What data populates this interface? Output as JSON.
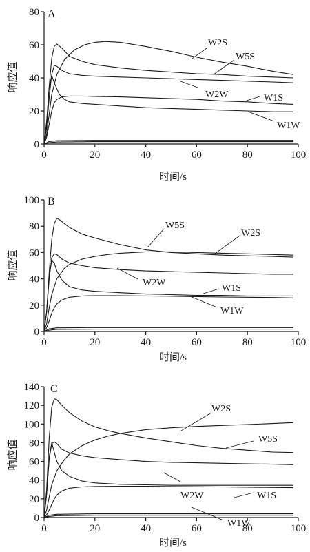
{
  "chart_data": [
    {
      "type": "line",
      "panel_label": "A",
      "xlabel": "时间/s",
      "ylabel": "响应值",
      "xlim": [
        0,
        100
      ],
      "ylim": [
        0,
        80
      ],
      "xticks": [
        0,
        20,
        40,
        60,
        80,
        100
      ],
      "yticks": [
        0,
        20,
        40,
        60,
        80
      ],
      "series": [
        {
          "name": "W2S",
          "x": [
            0,
            1,
            2,
            3,
            5,
            8,
            12,
            16,
            20,
            24,
            30,
            40,
            50,
            60,
            70,
            80,
            90,
            98
          ],
          "y": [
            0,
            6,
            18,
            30,
            42,
            51,
            57,
            60,
            61.5,
            62,
            61.5,
            59,
            56,
            52.5,
            49.5,
            47,
            44,
            42
          ]
        },
        {
          "name": "W5S",
          "x": [
            0,
            1,
            2,
            3,
            4,
            5,
            7,
            10,
            15,
            20,
            30,
            40,
            50,
            60,
            70,
            80,
            90,
            98
          ],
          "y": [
            0,
            12,
            35,
            52,
            59,
            60.5,
            58,
            53,
            50,
            48,
            46,
            44.5,
            43.5,
            42.5,
            42,
            41,
            40.5,
            40
          ]
        },
        {
          "name": "W2W",
          "x": [
            0,
            1,
            2,
            3,
            4,
            5,
            7,
            10,
            15,
            20,
            30,
            40,
            50,
            60,
            70,
            80,
            90,
            98
          ],
          "y": [
            0,
            10,
            28,
            42,
            47.5,
            47,
            44.5,
            42.5,
            41.5,
            41,
            40.5,
            40,
            39.5,
            39,
            38.5,
            38,
            37.5,
            37
          ]
        },
        {
          "name": "W1S",
          "x": [
            0,
            1,
            2,
            3,
            4,
            5,
            7,
            10,
            15,
            20,
            30,
            40,
            50,
            60,
            70,
            80,
            90,
            98
          ],
          "y": [
            0,
            4,
            12,
            20,
            25,
            27,
            28.5,
            29,
            29,
            28.8,
            28.5,
            28,
            27.5,
            27,
            26,
            25.5,
            24.5,
            24
          ]
        },
        {
          "name": "W1W",
          "x": [
            0,
            1,
            2,
            3,
            4,
            6,
            8,
            10,
            15,
            20,
            30,
            40,
            50,
            60,
            70,
            80,
            90,
            98
          ],
          "y": [
            0,
            14,
            34,
            41.5,
            37,
            30,
            27,
            25.5,
            24.5,
            24,
            23,
            22,
            21.5,
            21,
            20.5,
            20,
            19.5,
            19.5
          ]
        }
      ],
      "baselines": [
        {
          "x": [
            0,
            2,
            5,
            20,
            50,
            98
          ],
          "y": [
            0,
            1.5,
            2,
            2.2,
            2.2,
            2.2
          ]
        },
        {
          "x": [
            0,
            2,
            5,
            20,
            50,
            98
          ],
          "y": [
            0,
            0.8,
            1.2,
            1.4,
            1.4,
            1.4
          ]
        }
      ],
      "annotations": [
        "W2S",
        "W5S",
        "W2W",
        "W1S",
        "W1W"
      ]
    },
    {
      "type": "line",
      "panel_label": "B",
      "xlabel": "时间/s",
      "ylabel": "响应值",
      "xlim": [
        0,
        100
      ],
      "ylim": [
        0,
        100
      ],
      "xticks": [
        0,
        20,
        40,
        60,
        80,
        100
      ],
      "yticks": [
        0,
        20,
        40,
        60,
        80,
        100
      ],
      "series": [
        {
          "name": "W5S",
          "x": [
            0,
            1,
            2,
            3,
            4,
            5,
            6,
            8,
            10,
            15,
            20,
            30,
            40,
            50,
            60,
            70,
            80,
            90,
            98
          ],
          "y": [
            0,
            15,
            45,
            70,
            82,
            86,
            85,
            82,
            79,
            74,
            71,
            66,
            62,
            60,
            59,
            58,
            57.5,
            57,
            56.5
          ]
        },
        {
          "name": "W2S",
          "x": [
            0,
            1,
            2,
            3,
            5,
            8,
            10,
            15,
            20,
            25,
            30,
            40,
            50,
            60,
            70,
            80,
            90,
            98
          ],
          "y": [
            0,
            6,
            18,
            28,
            40,
            48,
            51,
            55,
            57,
            58.5,
            59.5,
            60.5,
            60.5,
            60,
            59.5,
            59,
            58.5,
            58
          ]
        },
        {
          "name": "W2W",
          "x": [
            0,
            1,
            2,
            3,
            4,
            5,
            7,
            10,
            15,
            20,
            30,
            40,
            50,
            60,
            70,
            80,
            90,
            98
          ],
          "y": [
            0,
            15,
            40,
            56,
            59,
            58.5,
            55,
            52,
            50,
            48.5,
            47,
            46,
            45.5,
            45,
            44.5,
            44,
            43.5,
            43.5
          ]
        },
        {
          "name": "W1S",
          "x": [
            0,
            1,
            2,
            3,
            4,
            5,
            7,
            10,
            15,
            20,
            30,
            40,
            50,
            60,
            70,
            80,
            90,
            98
          ],
          "y": [
            0,
            3,
            8,
            14,
            18,
            21,
            24,
            26,
            27,
            27.2,
            27.2,
            27,
            26.8,
            26.5,
            26.2,
            26,
            25.8,
            25.5
          ]
        },
        {
          "name": "W1W",
          "x": [
            0,
            1,
            2,
            3,
            4,
            5,
            7,
            10,
            15,
            20,
            30,
            40,
            50,
            60,
            70,
            80,
            90,
            98
          ],
          "y": [
            0,
            15,
            42,
            54,
            52,
            46,
            39,
            34,
            31.5,
            30.5,
            29.5,
            28.5,
            28,
            27.5,
            27.5,
            27,
            27,
            27
          ]
        }
      ],
      "baselines": [
        {
          "x": [
            0,
            2,
            5,
            20,
            50,
            98
          ],
          "y": [
            0,
            2,
            2.8,
            3,
            3,
            3
          ]
        },
        {
          "x": [
            0,
            2,
            5,
            20,
            50,
            98
          ],
          "y": [
            0,
            1,
            1.6,
            1.8,
            1.8,
            1.8
          ]
        }
      ],
      "annotations": [
        "W5S",
        "W2S",
        "W2W",
        "W1S",
        "W1W"
      ]
    },
    {
      "type": "line",
      "panel_label": "C",
      "xlabel": "时间/s",
      "ylabel": "响应值",
      "xlim": [
        0,
        100
      ],
      "ylim": [
        0,
        140
      ],
      "xticks": [
        0,
        20,
        40,
        60,
        80,
        100
      ],
      "yticks": [
        0,
        20,
        40,
        60,
        80,
        100,
        120,
        140
      ],
      "series": [
        {
          "name": "W2S",
          "x": [
            0,
            1,
            2,
            3,
            5,
            8,
            10,
            15,
            20,
            25,
            30,
            40,
            50,
            60,
            70,
            80,
            90,
            98
          ],
          "y": [
            0,
            8,
            22,
            35,
            50,
            62,
            68,
            77,
            83,
            87,
            90,
            94,
            96,
            97.5,
            98.5,
            99.5,
            100.5,
            101.5
          ]
        },
        {
          "name": "W5S",
          "x": [
            0,
            1,
            2,
            3,
            4,
            5,
            7,
            10,
            15,
            20,
            25,
            30,
            40,
            50,
            60,
            70,
            80,
            90,
            98
          ],
          "y": [
            0,
            30,
            85,
            118,
            127,
            126,
            120,
            112,
            103,
            97,
            93,
            90,
            85,
            81,
            77,
            74,
            72,
            70,
            69.5
          ]
        },
        {
          "name": "W2W",
          "x": [
            0,
            1,
            2,
            3,
            4,
            5,
            7,
            10,
            15,
            20,
            30,
            40,
            50,
            60,
            70,
            80,
            90,
            98
          ],
          "y": [
            0,
            25,
            62,
            79,
            81,
            79,
            73,
            69,
            66,
            64,
            62,
            60,
            59,
            58.5,
            58,
            57.5,
            57,
            56.5
          ]
        },
        {
          "name": "W1W",
          "x": [
            0,
            1,
            2,
            3,
            4,
            5,
            7,
            10,
            15,
            20,
            30,
            40,
            50,
            60,
            70,
            80,
            90,
            98
          ],
          "y": [
            0,
            3,
            8,
            14,
            20,
            24,
            28.5,
            31.5,
            32.8,
            33.2,
            33.5,
            33.5,
            33.2,
            33,
            32.8,
            32.5,
            32.2,
            32
          ]
        },
        {
          "name": "W1S",
          "x": [
            0,
            1,
            2,
            3,
            4,
            5,
            7,
            10,
            15,
            20,
            30,
            40,
            50,
            60,
            70,
            80,
            90,
            98
          ],
          "y": [
            0,
            25,
            65,
            80,
            70,
            60,
            50,
            44,
            39,
            37,
            35.5,
            35,
            34.5,
            34.5,
            34.5,
            34.5,
            34.5,
            34.5
          ]
        }
      ],
      "baselines": [
        {
          "x": [
            0,
            2,
            5,
            20,
            50,
            98
          ],
          "y": [
            0,
            2.5,
            3.5,
            4,
            4,
            4
          ]
        },
        {
          "x": [
            0,
            2,
            5,
            20,
            50,
            98
          ],
          "y": [
            0,
            1.2,
            2,
            2.4,
            2.4,
            2.4
          ]
        }
      ],
      "annotations": [
        "W2S",
        "W5S",
        "W2W",
        "W1S",
        "W1W"
      ]
    }
  ]
}
